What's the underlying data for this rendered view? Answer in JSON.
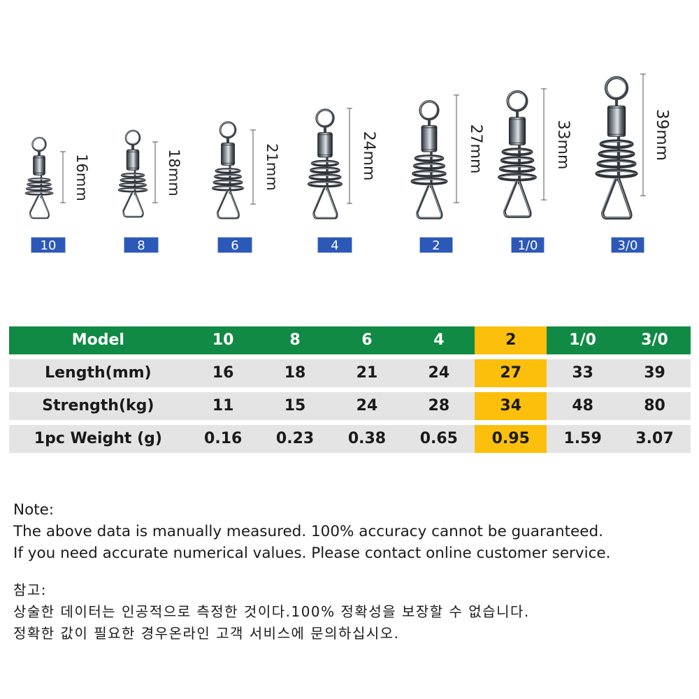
{
  "products": [
    {
      "dimension": "16mm",
      "badge": "10"
    },
    {
      "dimension": "18mm",
      "badge": "8"
    },
    {
      "dimension": "21mm",
      "badge": "6"
    },
    {
      "dimension": "24mm",
      "badge": "4"
    },
    {
      "dimension": "27mm",
      "badge": "2"
    },
    {
      "dimension": "33mm",
      "badge": "1/0"
    },
    {
      "dimension": "39mm",
      "badge": "3/0"
    }
  ],
  "table": {
    "header": {
      "label": "Model",
      "values": [
        "10",
        "8",
        "6",
        "4",
        "2",
        "1/0",
        "3/0"
      ]
    },
    "rows": [
      {
        "label": "Length(mm)",
        "values": [
          "16",
          "18",
          "21",
          "24",
          "27",
          "33",
          "39"
        ]
      },
      {
        "label": "Strength(kg)",
        "values": [
          "11",
          "15",
          "24",
          "28",
          "34",
          "48",
          "80"
        ]
      },
      {
        "label": "1pc Weight (g)",
        "values": [
          "0.16",
          "0.23",
          "0.38",
          "0.65",
          "0.95",
          "1.59",
          "3.07"
        ]
      }
    ],
    "highlight_column": 4,
    "colors": {
      "header_bg": "#118a45",
      "row_bg": "#e5e4e4",
      "highlight": "#fbbf0c",
      "badge_bg": "#2c58b8"
    }
  },
  "notes": {
    "en_title": "Note:",
    "en_line1": "The above data is manually measured. 100% accuracy cannot be guaranteed.",
    "en_line2": "If you need accurate numerical values. Please contact online customer service.",
    "ko_title": "참고:",
    "ko_line1": "상술한 데이터는 인공적으로 측정한 것이다.100% 정확성을 보장할 수 없습니다.",
    "ko_line2": "정확한 값이 필요한 경우온라인 고객 서비스에 문의하십시오."
  }
}
